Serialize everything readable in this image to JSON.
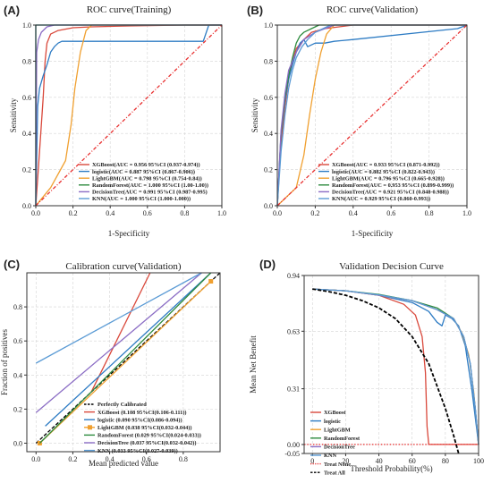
{
  "colors": {
    "xgboost": "#d9483b",
    "logistic": "#2e7cc4",
    "lightgbm": "#f0a030",
    "randomforest": "#2e8b3e",
    "decisiontree": "#8a6cc4",
    "knn": "#5b9bd5",
    "reference": "#e83030"
  },
  "chart_data": [
    {
      "type": "line",
      "panel_label": "(A)",
      "title": "ROC curve(Training)",
      "xlabel": "1-Specificity",
      "ylabel": "Sensitivity",
      "xlim": [
        0,
        1
      ],
      "ylim": [
        0,
        1
      ],
      "xticks": [
        "0.0",
        "0.2",
        "0.4",
        "0.6",
        "0.8",
        "1.0"
      ],
      "yticks": [
        "0.0",
        "0.2",
        "0.4",
        "0.6",
        "0.8",
        "1.0"
      ],
      "grid": true,
      "legend": "bottom-right",
      "series": [
        {
          "name": "XGBoost(AUC = 0.956 95%CI (0.937-0.974))",
          "color_key": "xgboost",
          "x": [
            0,
            0.02,
            0.04,
            0.05,
            0.06,
            0.08,
            0.12,
            0.2,
            0.3,
            0.5,
            0.8,
            1.0
          ],
          "y": [
            0,
            0.3,
            0.6,
            0.8,
            0.9,
            0.95,
            0.97,
            0.985,
            0.99,
            0.995,
            1.0,
            1.0
          ]
        },
        {
          "name": "logistic(AUC = 0.887 95%CI (0.867-0.906))",
          "color_key": "logistic",
          "x": [
            0,
            0.01,
            0.02,
            0.04,
            0.06,
            0.08,
            0.1,
            0.12,
            0.14,
            0.16,
            0.9,
            0.93,
            1.0
          ],
          "y": [
            0,
            0.55,
            0.65,
            0.72,
            0.78,
            0.85,
            0.88,
            0.9,
            0.91,
            0.91,
            0.91,
            1.0,
            1.0
          ]
        },
        {
          "name": "LightGBM(AUC = 0.798 95%CI (0.754-0.84))",
          "color_key": "lightgbm",
          "x": [
            0,
            0.08,
            0.16,
            0.19,
            0.21,
            0.24,
            0.27,
            0.3,
            1.0
          ],
          "y": [
            0,
            0.1,
            0.25,
            0.45,
            0.65,
            0.85,
            0.97,
            1.0,
            1.0
          ]
        },
        {
          "name": "RandomForest(AUC = 1.000 95%CI (1.00-1.00))",
          "color_key": "randomforest",
          "x": [
            0,
            0,
            1.0
          ],
          "y": [
            0,
            1.0,
            1.0
          ]
        },
        {
          "name": "DecisionTree(AUC = 0.991 95%CI (0.987-0.995)",
          "color_key": "decisiontree",
          "x": [
            0,
            0.005,
            0.015,
            0.03,
            0.06,
            0.1,
            1.0
          ],
          "y": [
            0,
            0.85,
            0.92,
            0.96,
            0.99,
            1.0,
            1.0
          ]
        },
        {
          "name": "KNN(AUC = 1.000 95%CI (1.000-1.000))",
          "color_key": "knn",
          "x": [
            0,
            0,
            1.0
          ],
          "y": [
            0,
            1.0,
            1.0
          ]
        },
        {
          "name": "",
          "color_key": "reference",
          "dashed": true,
          "x": [
            0,
            1
          ],
          "y": [
            0,
            1
          ]
        }
      ]
    },
    {
      "type": "line",
      "panel_label": "(B)",
      "title": "ROC curve(Validation)",
      "xlabel": "1-Specificity",
      "ylabel": "Sensitivity",
      "xlim": [
        0,
        1
      ],
      "ylim": [
        0,
        1
      ],
      "xticks": [
        "0.0",
        "0.2",
        "0.4",
        "0.6",
        "0.8",
        "1.0"
      ],
      "yticks": [
        "0.0",
        "0.2",
        "0.4",
        "0.6",
        "0.8",
        "1.0"
      ],
      "grid": true,
      "legend": "bottom-right",
      "series": [
        {
          "name": "XGBoost(AUC = 0.933 95%CI (0.871-0.992))",
          "color_key": "xgboost",
          "x": [
            0,
            0.02,
            0.04,
            0.06,
            0.08,
            0.1,
            0.14,
            0.18,
            0.25,
            0.4,
            1.0
          ],
          "y": [
            0,
            0.35,
            0.55,
            0.7,
            0.8,
            0.87,
            0.92,
            0.96,
            0.98,
            1.0,
            1.0
          ]
        },
        {
          "name": "logistic(AUC = 0.882 95%CI (0.822-0.943))",
          "color_key": "logistic",
          "x": [
            0,
            0.02,
            0.04,
            0.06,
            0.08,
            0.1,
            0.12,
            0.14,
            0.16,
            0.2,
            0.25,
            0.3,
            0.4,
            0.95,
            1.0
          ],
          "y": [
            0,
            0.4,
            0.58,
            0.7,
            0.78,
            0.85,
            0.9,
            0.92,
            0.88,
            0.9,
            0.9,
            0.91,
            0.92,
            0.98,
            1.0
          ]
        },
        {
          "name": "LightGBM(AUC = 0.796 95%CI (0.665-0.928))",
          "color_key": "lightgbm",
          "x": [
            0,
            0.1,
            0.14,
            0.17,
            0.2,
            0.23,
            0.26,
            0.3,
            1.0
          ],
          "y": [
            0,
            0.1,
            0.28,
            0.5,
            0.7,
            0.85,
            0.95,
            1.0,
            1.0
          ]
        },
        {
          "name": "RandomForest(AUC = 0.953 95%CI (0.899-0.999))",
          "color_key": "randomforest",
          "x": [
            0,
            0.02,
            0.04,
            0.06,
            0.08,
            0.1,
            0.12,
            0.14,
            0.18,
            0.22,
            1.0
          ],
          "y": [
            0,
            0.4,
            0.6,
            0.72,
            0.82,
            0.9,
            0.94,
            0.96,
            0.98,
            1.0,
            1.0
          ]
        },
        {
          "name": "DecisionTree(AUC = 0.921 95%CI (0.848-0.988))",
          "color_key": "decisiontree",
          "x": [
            0,
            0.02,
            0.04,
            0.06,
            0.1,
            0.14,
            0.2,
            0.3,
            1.0
          ],
          "y": [
            0,
            0.42,
            0.62,
            0.75,
            0.85,
            0.92,
            0.96,
            1.0,
            1.0
          ]
        },
        {
          "name": "KNN(AUC = 0.929 95%CI (0.860-0.993))",
          "color_key": "knn",
          "x": [
            0,
            0.02,
            0.04,
            0.06,
            0.08,
            0.1,
            0.13,
            0.16,
            0.2,
            0.28,
            1.0
          ],
          "y": [
            0,
            0.3,
            0.5,
            0.65,
            0.75,
            0.82,
            0.88,
            0.92,
            0.96,
            1.0,
            1.0
          ]
        },
        {
          "name": "",
          "color_key": "reference",
          "dashed": true,
          "x": [
            0,
            1
          ],
          "y": [
            0,
            1
          ]
        }
      ]
    },
    {
      "type": "line",
      "panel_label": "(C)",
      "title": "Calibration curve(Validation)",
      "xlabel": "Mean predicted value",
      "ylabel": "Fraction of positives",
      "xlim": [
        -0.05,
        1.0
      ],
      "ylim": [
        -0.05,
        1.0
      ],
      "xticks": [
        "0.0",
        "0.2",
        "0.4",
        "0.6",
        "0.8"
      ],
      "yticks": [
        "0.0",
        "0.2",
        "0.4",
        "0.6",
        "0.8"
      ],
      "grid": true,
      "legend": "bottom-right",
      "series": [
        {
          "name": "Perfectly Calibrated",
          "color_key": "black",
          "dashed": true,
          "x": [
            0,
            1.0
          ],
          "y": [
            0,
            1.0
          ]
        },
        {
          "name": "XGBoost (0.108 95%CI(0.106-0.111))",
          "color_key": "xgboost",
          "x": [
            0.3,
            0.62
          ],
          "y": [
            0.3,
            1.05
          ]
        },
        {
          "name": "logistic (0.090 95%CI(0.086-0.094))",
          "color_key": "logistic",
          "x": [
            0.05,
            0.95
          ],
          "y": [
            0.1,
            1.03
          ]
        },
        {
          "name": "LightGBM (0.038 95%CI(0.032-0.044))",
          "color_key": "lightgbm",
          "marker": "square",
          "x": [
            0.02,
            0.95
          ],
          "y": [
            0.0,
            0.95
          ]
        },
        {
          "name": "RandomForest (0.029 95%CI(0.024-0.033))",
          "color_key": "randomforest",
          "x": [
            0.02,
            0.95
          ],
          "y": [
            0.0,
            1.03
          ]
        },
        {
          "name": "DecisionTree (0.037 95%CI(0.032-0.042))",
          "color_key": "decisiontree",
          "x": [
            0.0,
            0.9
          ],
          "y": [
            0.18,
            1.03
          ]
        },
        {
          "name": "KNN (0.033 95%CI(0.027-0.039))",
          "color_key": "knn",
          "x": [
            0.0,
            0.9
          ],
          "y": [
            0.47,
            1.03
          ]
        }
      ]
    },
    {
      "type": "line",
      "panel_label": "(D)",
      "title": "Validation Decision Curve",
      "xlabel": "Threshold Probability(%)",
      "ylabel": "Mean Net Benefit",
      "xlim": [
        -5,
        100
      ],
      "ylim": [
        -0.05,
        0.94
      ],
      "xticks": [
        "0",
        "20",
        "40",
        "60",
        "80",
        "100"
      ],
      "yticks": [
        "-0.05",
        "0.00",
        "0.31",
        "0.63",
        "0.94"
      ],
      "grid": true,
      "legend": "bottom-left",
      "series": [
        {
          "name": "XGBoost",
          "color_key": "xgboost",
          "x": [
            0,
            20,
            40,
            55,
            62,
            66,
            68,
            69,
            70,
            100
          ],
          "y": [
            0.865,
            0.855,
            0.83,
            0.78,
            0.72,
            0.6,
            0.4,
            0.1,
            0.0,
            0.0
          ]
        },
        {
          "name": "logistic",
          "color_key": "logistic",
          "x": [
            0,
            20,
            40,
            60,
            70,
            75,
            78,
            80,
            84,
            88,
            92,
            96,
            100
          ],
          "y": [
            0.865,
            0.855,
            0.83,
            0.79,
            0.74,
            0.68,
            0.66,
            0.72,
            0.7,
            0.66,
            0.55,
            0.3,
            0.0
          ]
        },
        {
          "name": "LightGBM",
          "color_key": "lightgbm",
          "x": [
            0,
            20,
            40,
            60,
            75,
            85,
            90,
            94,
            97,
            100
          ],
          "y": [
            0.865,
            0.855,
            0.83,
            0.8,
            0.75,
            0.7,
            0.62,
            0.5,
            0.3,
            0.0
          ]
        },
        {
          "name": "RandomForest",
          "color_key": "randomforest",
          "x": [
            0,
            20,
            40,
            60,
            75,
            85,
            91,
            95,
            98,
            100
          ],
          "y": [
            0.865,
            0.855,
            0.835,
            0.8,
            0.76,
            0.7,
            0.6,
            0.45,
            0.2,
            0.0
          ]
        },
        {
          "name": "DecisionTree",
          "color_key": "decisiontree",
          "x": [
            0,
            20,
            40,
            60,
            75,
            85,
            91,
            95,
            98,
            100
          ],
          "y": [
            0.865,
            0.855,
            0.83,
            0.8,
            0.75,
            0.7,
            0.6,
            0.45,
            0.2,
            0.0
          ]
        },
        {
          "name": "KNN",
          "color_key": "knn",
          "x": [
            0,
            20,
            40,
            60,
            75,
            85,
            91,
            95,
            98,
            100
          ],
          "y": [
            0.865,
            0.855,
            0.832,
            0.8,
            0.75,
            0.7,
            0.6,
            0.45,
            0.2,
            0.0
          ]
        },
        {
          "name": "Treat None",
          "color_key": "reference",
          "dotted": true,
          "x": [
            -5,
            100
          ],
          "y": [
            0.0,
            0.0
          ]
        },
        {
          "name": "Treat All",
          "color_key": "black",
          "dashed": true,
          "x": [
            0,
            10,
            20,
            30,
            40,
            50,
            60,
            70,
            80,
            85,
            88
          ],
          "y": [
            0.865,
            0.85,
            0.83,
            0.8,
            0.76,
            0.7,
            0.6,
            0.45,
            0.2,
            0.05,
            -0.05
          ]
        }
      ]
    }
  ]
}
